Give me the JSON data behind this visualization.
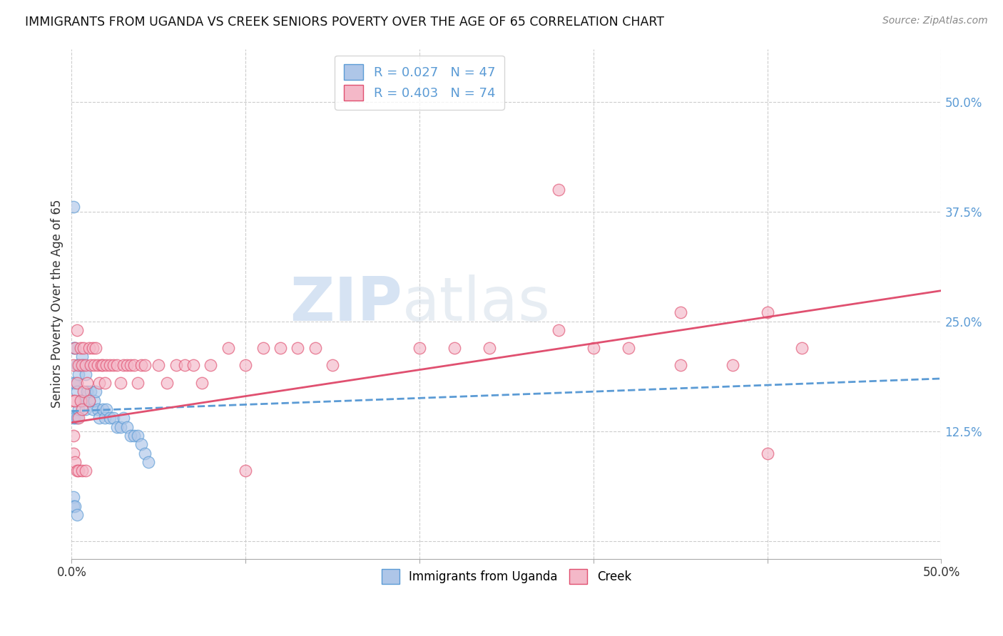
{
  "title": "IMMIGRANTS FROM UGANDA VS CREEK SENIORS POVERTY OVER THE AGE OF 65 CORRELATION CHART",
  "source": "Source: ZipAtlas.com",
  "ylabel": "Seniors Poverty Over the Age of 65",
  "legend_label_1": "Immigrants from Uganda",
  "legend_label_2": "Creek",
  "r1": 0.027,
  "n1": 47,
  "r2": 0.403,
  "n2": 74,
  "xlim": [
    0.0,
    0.5
  ],
  "ylim": [
    -0.02,
    0.56
  ],
  "xticks": [
    0.0,
    0.1,
    0.2,
    0.3,
    0.4,
    0.5
  ],
  "xticklabels_show": [
    "0.0%",
    "",
    "",
    "",
    "",
    "50.0%"
  ],
  "yticks_right": [
    0.0,
    0.125,
    0.25,
    0.375,
    0.5
  ],
  "yticklabels_right": [
    "",
    "12.5%",
    "25.0%",
    "37.5%",
    "50.0%"
  ],
  "color1": "#aec6e8",
  "color2": "#f4b8c8",
  "line_color1": "#5b9bd5",
  "line_color2": "#e05070",
  "background_color": "#ffffff",
  "grid_color": "#cccccc",
  "watermark_zip": "ZIP",
  "watermark_atlas": "atlas",
  "scatter1_x": [
    0.001,
    0.001,
    0.001,
    0.001,
    0.002,
    0.002,
    0.002,
    0.003,
    0.003,
    0.003,
    0.004,
    0.004,
    0.005,
    0.005,
    0.006,
    0.006,
    0.007,
    0.007,
    0.008,
    0.008,
    0.009,
    0.01,
    0.011,
    0.012,
    0.013,
    0.014,
    0.015,
    0.016,
    0.018,
    0.019,
    0.02,
    0.022,
    0.024,
    0.026,
    0.028,
    0.03,
    0.032,
    0.034,
    0.036,
    0.038,
    0.04,
    0.042,
    0.044,
    0.001,
    0.001,
    0.002,
    0.003
  ],
  "scatter1_y": [
    0.38,
    0.22,
    0.18,
    0.14,
    0.22,
    0.18,
    0.14,
    0.2,
    0.17,
    0.14,
    0.19,
    0.15,
    0.2,
    0.16,
    0.21,
    0.16,
    0.2,
    0.16,
    0.19,
    0.15,
    0.17,
    0.16,
    0.17,
    0.15,
    0.16,
    0.17,
    0.15,
    0.14,
    0.15,
    0.14,
    0.15,
    0.14,
    0.14,
    0.13,
    0.13,
    0.14,
    0.13,
    0.12,
    0.12,
    0.12,
    0.11,
    0.1,
    0.09,
    0.05,
    0.04,
    0.04,
    0.03
  ],
  "scatter2_x": [
    0.001,
    0.001,
    0.001,
    0.002,
    0.002,
    0.003,
    0.003,
    0.004,
    0.004,
    0.005,
    0.005,
    0.006,
    0.006,
    0.007,
    0.007,
    0.008,
    0.009,
    0.01,
    0.01,
    0.011,
    0.012,
    0.013,
    0.014,
    0.015,
    0.016,
    0.017,
    0.018,
    0.019,
    0.02,
    0.022,
    0.024,
    0.026,
    0.028,
    0.03,
    0.032,
    0.034,
    0.036,
    0.038,
    0.04,
    0.042,
    0.05,
    0.055,
    0.06,
    0.065,
    0.07,
    0.075,
    0.08,
    0.09,
    0.1,
    0.11,
    0.12,
    0.13,
    0.14,
    0.15,
    0.2,
    0.22,
    0.24,
    0.28,
    0.3,
    0.32,
    0.35,
    0.38,
    0.4,
    0.42,
    0.001,
    0.002,
    0.003,
    0.004,
    0.006,
    0.008,
    0.35,
    0.4,
    0.1,
    0.28
  ],
  "scatter2_y": [
    0.2,
    0.16,
    0.12,
    0.22,
    0.16,
    0.24,
    0.18,
    0.2,
    0.14,
    0.22,
    0.16,
    0.2,
    0.15,
    0.22,
    0.17,
    0.2,
    0.18,
    0.22,
    0.16,
    0.2,
    0.22,
    0.2,
    0.22,
    0.2,
    0.18,
    0.2,
    0.2,
    0.18,
    0.2,
    0.2,
    0.2,
    0.2,
    0.18,
    0.2,
    0.2,
    0.2,
    0.2,
    0.18,
    0.2,
    0.2,
    0.2,
    0.18,
    0.2,
    0.2,
    0.2,
    0.18,
    0.2,
    0.22,
    0.2,
    0.22,
    0.22,
    0.22,
    0.22,
    0.2,
    0.22,
    0.22,
    0.22,
    0.24,
    0.22,
    0.22,
    0.2,
    0.2,
    0.26,
    0.22,
    0.1,
    0.09,
    0.08,
    0.08,
    0.08,
    0.08,
    0.26,
    0.1,
    0.08,
    0.4
  ],
  "trendline1_x0": 0.0,
  "trendline1_y0": 0.148,
  "trendline1_x1": 0.5,
  "trendline1_y1": 0.185,
  "trendline2_x0": 0.0,
  "trendline2_y0": 0.135,
  "trendline2_x1": 0.5,
  "trendline2_y1": 0.285
}
